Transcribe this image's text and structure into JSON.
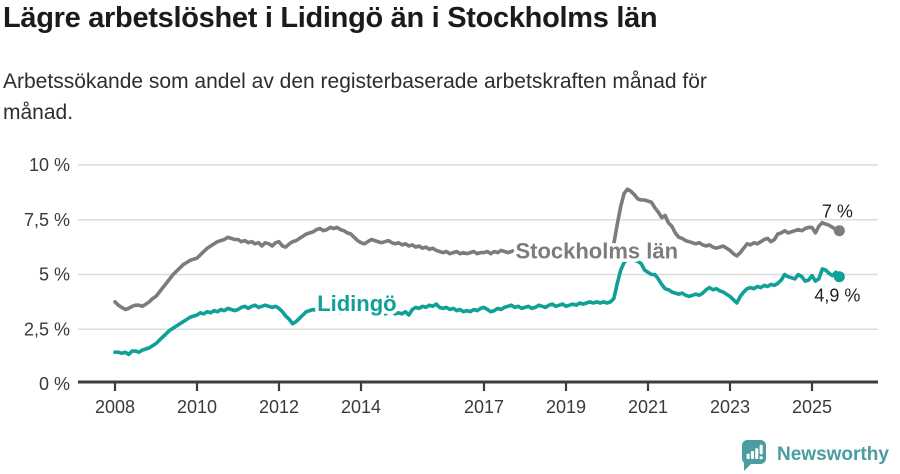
{
  "header": {
    "title": "Lägre arbetslöshet i Lidingö än i Stockholms län",
    "subtitle_line1": "Arbetssökande som andel av den registerbaserade arbetskraften månad för",
    "subtitle_line2": "månad."
  },
  "footer": {
    "brand": "Newsworthy"
  },
  "colors": {
    "stockholm_gray": "#7c7c7c",
    "lidingo_teal": "#0fa098",
    "brand_teal": "#4a9da0",
    "axis_text": "#3a3a3a",
    "gridline": "#dcdcdc",
    "axis_line": "#3c3c3c",
    "end_label_text": "#222222"
  },
  "chart_data": {
    "type": "line",
    "unit": "%",
    "interval": "monthly",
    "x_start_year": 2008,
    "x_range": [
      2008.0,
      2025.75
    ],
    "ylim": [
      0,
      10
    ],
    "grid": "horizontal",
    "legend_position": "inline-labels",
    "y_ticks": [
      {
        "value": 0,
        "label": "0 %"
      },
      {
        "value": 2.5,
        "label": "2,5 %"
      },
      {
        "value": 5,
        "label": "5 %"
      },
      {
        "value": 7.5,
        "label": "7,5 %"
      },
      {
        "value": 10,
        "label": "10 %"
      }
    ],
    "x_ticks": [
      {
        "year": 2008,
        "label": "2008"
      },
      {
        "year": 2010,
        "label": "2010"
      },
      {
        "year": 2012,
        "label": "2012"
      },
      {
        "year": 2014,
        "label": "2014"
      },
      {
        "year": 2017,
        "label": "2017"
      },
      {
        "year": 2019,
        "label": "2019"
      },
      {
        "year": 2021,
        "label": "2021"
      },
      {
        "year": 2023,
        "label": "2023"
      },
      {
        "year": 2025,
        "label": "2025"
      }
    ],
    "series": [
      {
        "name": "Stockholms län",
        "color": "#7c7c7c",
        "end_label": "7 %",
        "end_label_pos": "above",
        "label_anchor": {
          "year": 2019.75,
          "value": 6.1
        },
        "values": [
          3.75,
          3.6,
          3.5,
          3.4,
          3.45,
          3.55,
          3.6,
          3.6,
          3.55,
          3.65,
          3.75,
          3.9,
          4.0,
          4.2,
          4.4,
          4.6,
          4.8,
          5.0,
          5.15,
          5.3,
          5.45,
          5.55,
          5.65,
          5.7,
          5.75,
          5.9,
          6.05,
          6.2,
          6.3,
          6.4,
          6.5,
          6.55,
          6.6,
          6.7,
          6.65,
          6.6,
          6.6,
          6.5,
          6.55,
          6.45,
          6.5,
          6.4,
          6.45,
          6.3,
          6.45,
          6.4,
          6.3,
          6.45,
          6.5,
          6.3,
          6.25,
          6.4,
          6.5,
          6.55,
          6.65,
          6.75,
          6.85,
          6.9,
          6.95,
          7.05,
          7.1,
          7.0,
          7.05,
          7.15,
          7.1,
          7.15,
          7.05,
          7.0,
          6.9,
          6.85,
          6.7,
          6.55,
          6.45,
          6.4,
          6.5,
          6.6,
          6.55,
          6.5,
          6.45,
          6.5,
          6.55,
          6.45,
          6.4,
          6.45,
          6.35,
          6.4,
          6.3,
          6.35,
          6.25,
          6.3,
          6.2,
          6.25,
          6.15,
          6.2,
          6.1,
          6.05,
          6.0,
          6.05,
          5.95,
          6.0,
          6.05,
          5.95,
          6.0,
          5.95,
          6.0,
          6.05,
          5.95,
          6.0,
          6.0,
          6.05,
          5.95,
          6.05,
          6.0,
          6.1,
          6.05,
          6.0,
          6.05,
          6.1,
          6.0,
          6.05,
          6.05,
          6.1,
          6.0,
          6.05,
          6.1,
          6.0,
          5.95,
          6.05,
          6.0,
          6.05,
          6.0,
          6.05,
          6.0,
          6.05,
          6.1,
          6.05,
          6.1,
          6.05,
          6.1,
          6.15,
          6.1,
          6.05,
          6.1,
          6.15,
          6.1,
          6.1,
          6.4,
          7.3,
          8.1,
          8.7,
          8.9,
          8.8,
          8.65,
          8.45,
          8.4,
          8.4,
          8.35,
          8.3,
          8.05,
          7.85,
          7.6,
          7.7,
          7.35,
          7.2,
          6.9,
          6.7,
          6.65,
          6.55,
          6.5,
          6.45,
          6.4,
          6.45,
          6.35,
          6.3,
          6.35,
          6.25,
          6.2,
          6.25,
          6.3,
          6.2,
          6.1,
          5.95,
          5.85,
          6.0,
          6.2,
          6.4,
          6.35,
          6.45,
          6.4,
          6.5,
          6.6,
          6.65,
          6.5,
          6.6,
          6.85,
          6.9,
          7.0,
          6.9,
          6.95,
          7.0,
          7.05,
          7.0,
          7.1,
          7.15,
          7.15,
          6.9,
          7.2,
          7.37,
          7.3,
          7.25,
          7.15,
          7.05,
          7.0
        ]
      },
      {
        "name": "Lidingö",
        "color": "#0fa098",
        "end_label": "4,9 %",
        "end_label_pos": "below",
        "label_anchor": {
          "year": 2013.9,
          "value": 3.7
        },
        "values": [
          1.45,
          1.45,
          1.4,
          1.45,
          1.35,
          1.5,
          1.5,
          1.45,
          1.55,
          1.6,
          1.65,
          1.75,
          1.85,
          2.0,
          2.15,
          2.3,
          2.45,
          2.55,
          2.65,
          2.75,
          2.85,
          2.95,
          3.05,
          3.1,
          3.15,
          3.25,
          3.2,
          3.3,
          3.25,
          3.35,
          3.3,
          3.4,
          3.35,
          3.45,
          3.4,
          3.35,
          3.4,
          3.5,
          3.55,
          3.45,
          3.55,
          3.6,
          3.5,
          3.55,
          3.6,
          3.55,
          3.5,
          3.55,
          3.45,
          3.3,
          3.1,
          2.95,
          2.75,
          2.85,
          3.0,
          3.15,
          3.3,
          3.35,
          3.4,
          3.35,
          3.4,
          3.45,
          3.35,
          3.4,
          3.3,
          3.35,
          3.25,
          3.3,
          3.4,
          3.35,
          3.45,
          3.4,
          3.45,
          3.35,
          3.4,
          3.3,
          3.35,
          3.25,
          3.3,
          3.2,
          3.25,
          3.3,
          3.2,
          3.25,
          3.2,
          3.3,
          3.15,
          3.4,
          3.5,
          3.45,
          3.55,
          3.5,
          3.6,
          3.55,
          3.65,
          3.5,
          3.45,
          3.5,
          3.4,
          3.45,
          3.35,
          3.4,
          3.3,
          3.35,
          3.3,
          3.4,
          3.35,
          3.45,
          3.5,
          3.4,
          3.3,
          3.35,
          3.45,
          3.4,
          3.5,
          3.55,
          3.6,
          3.5,
          3.55,
          3.45,
          3.5,
          3.55,
          3.45,
          3.5,
          3.6,
          3.55,
          3.5,
          3.6,
          3.65,
          3.55,
          3.6,
          3.65,
          3.55,
          3.6,
          3.65,
          3.6,
          3.7,
          3.65,
          3.7,
          3.75,
          3.7,
          3.75,
          3.7,
          3.75,
          3.7,
          3.75,
          3.9,
          4.6,
          5.2,
          5.55,
          5.7,
          5.72,
          5.65,
          5.6,
          5.5,
          5.2,
          5.1,
          5.0,
          5.0,
          4.8,
          4.55,
          4.35,
          4.3,
          4.2,
          4.15,
          4.1,
          4.15,
          4.05,
          4.0,
          4.05,
          4.1,
          4.05,
          4.15,
          4.3,
          4.4,
          4.3,
          4.35,
          4.25,
          4.2,
          4.1,
          4.0,
          3.85,
          3.7,
          4.0,
          4.2,
          4.35,
          4.4,
          4.35,
          4.45,
          4.4,
          4.5,
          4.45,
          4.55,
          4.5,
          4.6,
          4.75,
          5.0,
          4.9,
          4.85,
          4.8,
          5.0,
          4.9,
          4.7,
          4.75,
          4.95,
          4.7,
          4.8,
          5.25,
          5.2,
          5.05,
          4.95,
          5.1,
          4.9
        ]
      }
    ]
  }
}
